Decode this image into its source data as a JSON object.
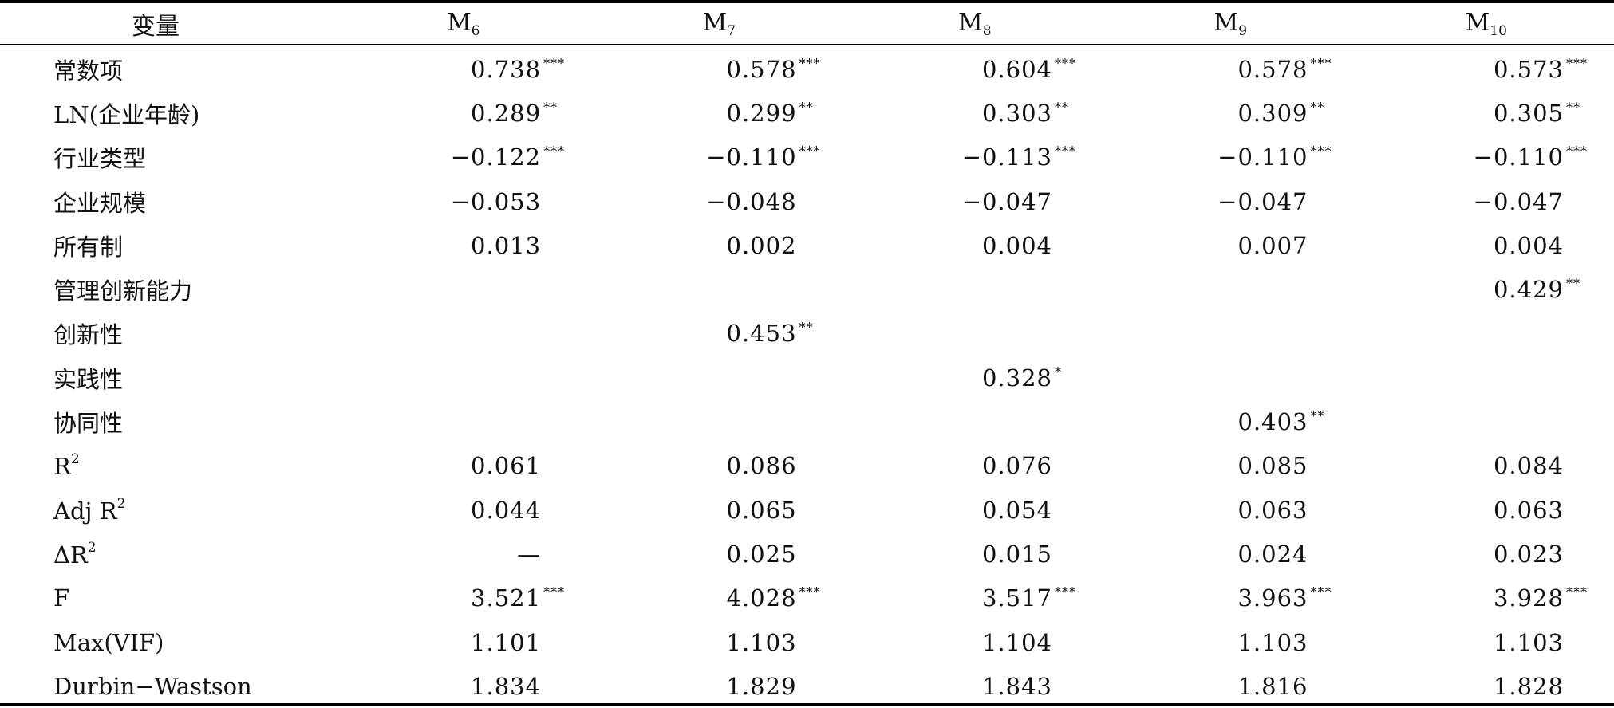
{
  "table": {
    "headers": [
      {
        "main": "变量",
        "sub": ""
      },
      {
        "main": "M",
        "sub": "6"
      },
      {
        "main": "M",
        "sub": "7"
      },
      {
        "main": "M",
        "sub": "8"
      },
      {
        "main": "M",
        "sub": "9"
      },
      {
        "main": "M",
        "sub": "10"
      }
    ],
    "rows": [
      {
        "label": "常数项",
        "sup": "",
        "cells": [
          {
            "v": "0.738",
            "s": "***"
          },
          {
            "v": "0.578",
            "s": "***"
          },
          {
            "v": "0.604",
            "s": "***"
          },
          {
            "v": "0.578",
            "s": "***"
          },
          {
            "v": "0.573",
            "s": "***"
          }
        ]
      },
      {
        "label": "LN(企业年龄)",
        "sup": "",
        "cells": [
          {
            "v": "0.289",
            "s": "**"
          },
          {
            "v": "0.299",
            "s": "**"
          },
          {
            "v": "0.303",
            "s": "**"
          },
          {
            "v": "0.309",
            "s": "**"
          },
          {
            "v": "0.305",
            "s": "**"
          }
        ]
      },
      {
        "label": "行业类型",
        "sup": "",
        "cells": [
          {
            "v": "−0.122",
            "s": "***"
          },
          {
            "v": "−0.110",
            "s": "***"
          },
          {
            "v": "−0.113",
            "s": "***"
          },
          {
            "v": "−0.110",
            "s": "***"
          },
          {
            "v": "−0.110",
            "s": "***"
          }
        ]
      },
      {
        "label": "企业规模",
        "sup": "",
        "cells": [
          {
            "v": "−0.053",
            "s": ""
          },
          {
            "v": "−0.048",
            "s": ""
          },
          {
            "v": "−0.047",
            "s": ""
          },
          {
            "v": "−0.047",
            "s": ""
          },
          {
            "v": "−0.047",
            "s": ""
          }
        ]
      },
      {
        "label": "所有制",
        "sup": "",
        "cells": [
          {
            "v": "0.013",
            "s": ""
          },
          {
            "v": "0.002",
            "s": ""
          },
          {
            "v": "0.004",
            "s": ""
          },
          {
            "v": "0.007",
            "s": ""
          },
          {
            "v": "0.004",
            "s": ""
          }
        ]
      },
      {
        "label": "管理创新能力",
        "sup": "",
        "cells": [
          {
            "v": "",
            "s": ""
          },
          {
            "v": "",
            "s": ""
          },
          {
            "v": "",
            "s": ""
          },
          {
            "v": "",
            "s": ""
          },
          {
            "v": "0.429",
            "s": "**"
          }
        ]
      },
      {
        "label": "创新性",
        "sup": "",
        "cells": [
          {
            "v": "",
            "s": ""
          },
          {
            "v": "0.453",
            "s": "**"
          },
          {
            "v": "",
            "s": ""
          },
          {
            "v": "",
            "s": ""
          },
          {
            "v": "",
            "s": ""
          }
        ]
      },
      {
        "label": "实践性",
        "sup": "",
        "cells": [
          {
            "v": "",
            "s": ""
          },
          {
            "v": "",
            "s": ""
          },
          {
            "v": "0.328",
            "s": "*"
          },
          {
            "v": "",
            "s": ""
          },
          {
            "v": "",
            "s": ""
          }
        ]
      },
      {
        "label": "协同性",
        "sup": "",
        "cells": [
          {
            "v": "",
            "s": ""
          },
          {
            "v": "",
            "s": ""
          },
          {
            "v": "",
            "s": ""
          },
          {
            "v": "0.403",
            "s": "**"
          },
          {
            "v": "",
            "s": ""
          }
        ]
      },
      {
        "label": "R",
        "sup": "2",
        "cells": [
          {
            "v": "0.061",
            "s": ""
          },
          {
            "v": "0.086",
            "s": ""
          },
          {
            "v": "0.076",
            "s": ""
          },
          {
            "v": "0.085",
            "s": ""
          },
          {
            "v": "0.084",
            "s": ""
          }
        ]
      },
      {
        "label": "Adj R",
        "sup": "2",
        "cells": [
          {
            "v": "0.044",
            "s": ""
          },
          {
            "v": "0.065",
            "s": ""
          },
          {
            "v": "0.054",
            "s": ""
          },
          {
            "v": "0.063",
            "s": ""
          },
          {
            "v": "0.063",
            "s": ""
          }
        ]
      },
      {
        "label": "ΔR",
        "sup": "2",
        "cells": [
          {
            "v": "—",
            "s": ""
          },
          {
            "v": "0.025",
            "s": ""
          },
          {
            "v": "0.015",
            "s": ""
          },
          {
            "v": "0.024",
            "s": ""
          },
          {
            "v": "0.023",
            "s": ""
          }
        ]
      },
      {
        "label": "F",
        "sup": "",
        "cells": [
          {
            "v": "3.521",
            "s": "***"
          },
          {
            "v": "4.028",
            "s": "***"
          },
          {
            "v": "3.517",
            "s": "***"
          },
          {
            "v": "3.963",
            "s": "***"
          },
          {
            "v": "3.928",
            "s": "***"
          }
        ]
      },
      {
        "label": "Max(VIF)",
        "sup": "",
        "cells": [
          {
            "v": "1.101",
            "s": ""
          },
          {
            "v": "1.103",
            "s": ""
          },
          {
            "v": "1.104",
            "s": ""
          },
          {
            "v": "1.103",
            "s": ""
          },
          {
            "v": "1.103",
            "s": ""
          }
        ]
      },
      {
        "label": "Durbin−Wastson",
        "sup": "",
        "cells": [
          {
            "v": "1.834",
            "s": ""
          },
          {
            "v": "1.829",
            "s": ""
          },
          {
            "v": "1.843",
            "s": ""
          },
          {
            "v": "1.816",
            "s": ""
          },
          {
            "v": "1.828",
            "s": ""
          }
        ]
      }
    ]
  }
}
